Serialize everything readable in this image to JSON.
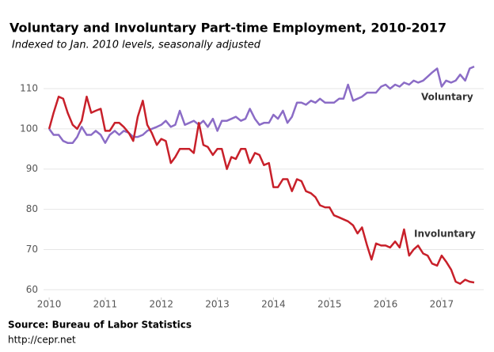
{
  "chart_data": {
    "type": "line",
    "title": "Voluntary and Involuntary Part-time Employment, 2010-2017",
    "subtitle": "Indexed to Jan. 2010 levels, seasonally adjusted",
    "source": "Source: Bureau of Labor Statistics",
    "url": "http://cepr.net",
    "x": [
      2010,
      2010.08,
      2010.17,
      2010.25,
      2010.33,
      2010.42,
      2010.5,
      2010.58,
      2010.67,
      2010.75,
      2010.83,
      2010.92,
      2011,
      2011.08,
      2011.17,
      2011.25,
      2011.33,
      2011.42,
      2011.5,
      2011.58,
      2011.67,
      2011.75,
      2011.83,
      2011.92,
      2012,
      2012.08,
      2012.17,
      2012.25,
      2012.33,
      2012.42,
      2012.5,
      2012.58,
      2012.67,
      2012.75,
      2012.83,
      2012.92,
      2013,
      2013.08,
      2013.17,
      2013.25,
      2013.33,
      2013.42,
      2013.5,
      2013.58,
      2013.67,
      2013.75,
      2013.83,
      2013.92,
      2014,
      2014.08,
      2014.17,
      2014.25,
      2014.33,
      2014.42,
      2014.5,
      2014.58,
      2014.67,
      2014.75,
      2014.83,
      2014.92,
      2015,
      2015.08,
      2015.17,
      2015.25,
      2015.33,
      2015.42,
      2015.5,
      2015.58,
      2015.67,
      2015.75,
      2015.83,
      2015.92,
      2016,
      2016.08,
      2016.17,
      2016.25,
      2016.33,
      2016.42,
      2016.5,
      2016.58,
      2016.67,
      2016.75,
      2016.83,
      2016.92,
      2017,
      2017.08,
      2017.17,
      2017.25,
      2017.33,
      2017.42,
      2017.5,
      2017.58
    ],
    "series": [
      {
        "name": "Voluntary",
        "color": "#8b6cc6",
        "values": [
          100,
          98.5,
          98.5,
          97,
          96.5,
          96.5,
          98,
          100.5,
          98.5,
          98.5,
          99.5,
          98.5,
          96.5,
          98.5,
          99.5,
          98.5,
          99.5,
          99,
          98,
          98,
          98.5,
          99.5,
          100,
          100.5,
          101,
          102,
          100.5,
          101,
          104.5,
          101,
          101.5,
          102,
          101,
          102,
          100.5,
          102.5,
          99.5,
          102,
          102,
          102.5,
          103,
          102,
          102.5,
          105,
          102.5,
          101,
          101.5,
          101.5,
          103.5,
          102.5,
          104.5,
          101.5,
          103,
          106.5,
          106.5,
          106,
          107,
          106.5,
          107.5,
          106.5,
          106.5,
          106.5,
          107.5,
          107.5,
          111,
          107,
          107.5,
          108,
          109,
          109,
          109,
          110.5,
          111,
          110,
          111,
          110.5,
          111.5,
          111,
          112,
          111.5,
          112,
          113,
          114,
          115,
          110.5,
          112,
          111.5,
          112,
          113.5,
          112,
          115,
          115.5
        ]
      },
      {
        "name": "Involuntary",
        "color": "#c8202a",
        "values": [
          100,
          104,
          108,
          107.5,
          104,
          101,
          100,
          102,
          108,
          104,
          104.5,
          105,
          99.5,
          99.5,
          101.5,
          101.5,
          100.5,
          99,
          97,
          103,
          107,
          101,
          99,
          96,
          97.5,
          97,
          91.5,
          93,
          95,
          95,
          95,
          94,
          101.5,
          96,
          95.5,
          93.5,
          95,
          95,
          90,
          93,
          92.5,
          95,
          95,
          91.5,
          94,
          93.5,
          91,
          91.5,
          85.5,
          85.5,
          87.5,
          87.5,
          84.5,
          87.5,
          87,
          84.5,
          84,
          83,
          81,
          80.5,
          80.5,
          78.5,
          78,
          77.5,
          77,
          76,
          74,
          75.5,
          71,
          67.5,
          71.5,
          71,
          71,
          70.5,
          72,
          70.5,
          75,
          68.5,
          70,
          71,
          69,
          68.5,
          66.5,
          66,
          68.5,
          67,
          65,
          62,
          61.5,
          62.5,
          62,
          61.8
        ]
      }
    ],
    "xlim": [
      2009.9,
      2017.75
    ],
    "xticks": [
      2010,
      2011,
      2012,
      2013,
      2014,
      2015,
      2016,
      2017
    ],
    "ylim": [
      57.5,
      116.5
    ],
    "yticks": [
      60,
      70,
      80,
      90,
      100,
      110
    ],
    "grid": true
  }
}
